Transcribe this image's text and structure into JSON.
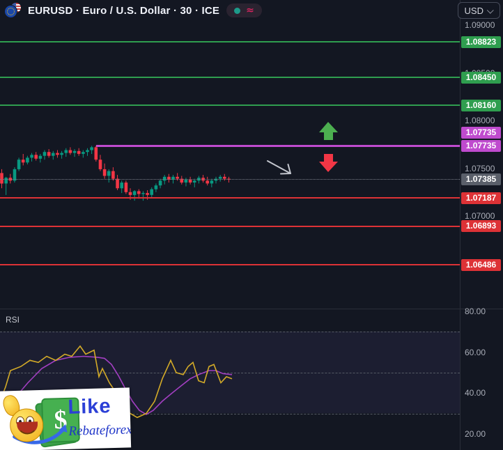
{
  "header": {
    "symbol_title": "EURUSD · Euro / U.S. Dollar · 30 · ICE",
    "status": {
      "approx_symbol": "≈"
    },
    "currency_selector": {
      "label": "USD"
    }
  },
  "price_axis": {
    "ticks": [
      {
        "label": "1.09000",
        "value": 1.09
      },
      {
        "label": "1.08500",
        "value": 1.085
      },
      {
        "label": "1.08000",
        "value": 1.08
      },
      {
        "label": "1.07500",
        "value": 1.075
      },
      {
        "label": "1.07000",
        "value": 1.07
      }
    ],
    "badges": [
      {
        "label": "1.08823",
        "value": 1.08823,
        "color": "green"
      },
      {
        "label": "1.08450",
        "value": 1.0845,
        "color": "green"
      },
      {
        "label": "1.08160",
        "value": 1.0816,
        "color": "green"
      },
      {
        "label": "1.07735",
        "value": 1.07735,
        "color": "magenta",
        "stack": -1
      },
      {
        "label": "1.07735",
        "value": 1.07735,
        "color": "magenta"
      },
      {
        "label": "1.07385",
        "value": 1.07385,
        "color": "gray"
      },
      {
        "label": "1.07187",
        "value": 1.07187,
        "color": "red"
      },
      {
        "label": "1.06893",
        "value": 1.06893,
        "color": "red"
      },
      {
        "label": "1.06486",
        "value": 1.06486,
        "color": "red"
      }
    ]
  },
  "rsi_pane": {
    "label": "RSI",
    "ticks": [
      {
        "label": "80.00",
        "value": 80
      },
      {
        "label": "60.00",
        "value": 60
      },
      {
        "label": "40.00",
        "value": 40
      },
      {
        "label": "20.00",
        "value": 20
      }
    ]
  },
  "watermark": {
    "title": "Like",
    "subtitle": "Rebateforex",
    "dollar_sign": "$"
  },
  "colors": {
    "candle_up": "#089981",
    "candle_down": "#f23645",
    "level_green": "#2f9e4f",
    "level_red": "#dd3236",
    "level_magenta": "#bf4bce",
    "rsi_line": "#d4ab28",
    "rsi_ma": "#a33fc2",
    "arrow_up": "#4caf50",
    "arrow_down": "#f23645",
    "drawn_arrow": "#c3c6ce"
  },
  "chart_data": {
    "type": "candlestick",
    "symbol": "EURUSD",
    "interval": "30",
    "exchange": "ICE",
    "main_pane": {
      "ylim": [
        1.0603,
        1.0906
      ],
      "current_price": 1.07385,
      "levels": [
        {
          "price": 1.08823,
          "color": "green"
        },
        {
          "price": 1.0845,
          "color": "green"
        },
        {
          "price": 1.0816,
          "color": "green"
        },
        {
          "price": 1.07735,
          "color": "magenta",
          "x_start": 138
        },
        {
          "price": 1.07187,
          "color": "red"
        },
        {
          "price": 1.06893,
          "color": "red"
        },
        {
          "price": 1.06486,
          "color": "red"
        }
      ],
      "candles_ohlc": [
        [
          1.0745,
          1.0749,
          1.0729,
          1.0734
        ],
        [
          1.0734,
          1.0741,
          1.0722,
          1.074
        ],
        [
          1.074,
          1.0744,
          1.0734,
          1.0737
        ],
        [
          1.0737,
          1.0751,
          1.0735,
          1.0749
        ],
        [
          1.0749,
          1.0761,
          1.0747,
          1.0759
        ],
        [
          1.0759,
          1.0765,
          1.0753,
          1.0756
        ],
        [
          1.0756,
          1.0763,
          1.0754,
          1.0761
        ],
        [
          1.0761,
          1.0766,
          1.0757,
          1.0764
        ],
        [
          1.0764,
          1.0767,
          1.0758,
          1.076
        ],
        [
          1.076,
          1.0765,
          1.0756,
          1.0763
        ],
        [
          1.0763,
          1.0769,
          1.0759,
          1.0767
        ],
        [
          1.0767,
          1.077,
          1.0761,
          1.0763
        ],
        [
          1.0763,
          1.0768,
          1.0759,
          1.0766
        ],
        [
          1.0766,
          1.0769,
          1.0761,
          1.0764
        ],
        [
          1.0764,
          1.0768,
          1.076,
          1.0766
        ],
        [
          1.0766,
          1.0771,
          1.0762,
          1.0769
        ],
        [
          1.0769,
          1.0772,
          1.0764,
          1.0766
        ],
        [
          1.0766,
          1.077,
          1.0762,
          1.0768
        ],
        [
          1.0768,
          1.0771,
          1.0763,
          1.0765
        ],
        [
          1.0765,
          1.0769,
          1.0761,
          1.0767
        ],
        [
          1.0767,
          1.0771,
          1.0763,
          1.0769
        ],
        [
          1.0769,
          1.07735,
          1.0765,
          1.0772
        ],
        [
          1.0772,
          1.07735,
          1.0757,
          1.0759
        ],
        [
          1.0759,
          1.0764,
          1.0747,
          1.0749
        ],
        [
          1.0749,
          1.0755,
          1.0739,
          1.0742
        ],
        [
          1.0742,
          1.0749,
          1.0735,
          1.0747
        ],
        [
          1.0747,
          1.0751,
          1.0737,
          1.0739
        ],
        [
          1.0739,
          1.0743,
          1.0727,
          1.0729
        ],
        [
          1.0729,
          1.0737,
          1.0724,
          1.0735
        ],
        [
          1.0735,
          1.0737,
          1.0723,
          1.0725
        ],
        [
          1.0725,
          1.0729,
          1.0717,
          1.0722
        ],
        [
          1.0722,
          1.0727,
          1.0716,
          1.0726
        ],
        [
          1.0726,
          1.0728,
          1.0718,
          1.0723
        ],
        [
          1.0723,
          1.0726,
          1.0716,
          1.0724
        ],
        [
          1.0724,
          1.0727,
          1.0717,
          1.0722
        ],
        [
          1.0722,
          1.073,
          1.0719,
          1.0728
        ],
        [
          1.0728,
          1.0734,
          1.0725,
          1.0732
        ],
        [
          1.0732,
          1.0739,
          1.0729,
          1.0737
        ],
        [
          1.0737,
          1.0743,
          1.0733,
          1.0741
        ],
        [
          1.0741,
          1.0744,
          1.0735,
          1.0738
        ],
        [
          1.0738,
          1.0743,
          1.0734,
          1.0741
        ],
        [
          1.0741,
          1.0745,
          1.0737,
          1.0739
        ],
        [
          1.0739,
          1.0742,
          1.0733,
          1.0735
        ],
        [
          1.0735,
          1.074,
          1.0731,
          1.0738
        ],
        [
          1.0738,
          1.0741,
          1.0733,
          1.0735
        ],
        [
          1.0735,
          1.0739,
          1.073,
          1.0737
        ],
        [
          1.0737,
          1.0742,
          1.0734,
          1.074
        ],
        [
          1.074,
          1.0743,
          1.0735,
          1.0737
        ],
        [
          1.0737,
          1.0741,
          1.0732,
          1.0734
        ],
        [
          1.0734,
          1.0739,
          1.073,
          1.0737
        ],
        [
          1.0737,
          1.0741,
          1.0734,
          1.0739
        ],
        [
          1.0739,
          1.0743,
          1.0736,
          1.0741
        ],
        [
          1.0741,
          1.0744,
          1.0737,
          1.0739
        ],
        [
          1.0739,
          1.0741,
          1.0735,
          1.07385
        ]
      ]
    },
    "rsi_pane": {
      "ylim": [
        13,
        81
      ],
      "guides": [
        70,
        50,
        30
      ],
      "rsi_line": [
        [
          0,
          36
        ],
        [
          8,
          43
        ],
        [
          15,
          51
        ],
        [
          30,
          53
        ],
        [
          43,
          56
        ],
        [
          55,
          55
        ],
        [
          67,
          58
        ],
        [
          80,
          56
        ],
        [
          93,
          59
        ],
        [
          103,
          58
        ],
        [
          115,
          63
        ],
        [
          123,
          59
        ],
        [
          135,
          61
        ],
        [
          142,
          48
        ],
        [
          147,
          52
        ],
        [
          157,
          45
        ],
        [
          165,
          41
        ],
        [
          173,
          32
        ],
        [
          187,
          30
        ],
        [
          197,
          28
        ],
        [
          210,
          30
        ],
        [
          222,
          36
        ],
        [
          233,
          47
        ],
        [
          245,
          56
        ],
        [
          253,
          50
        ],
        [
          263,
          49
        ],
        [
          270,
          53
        ],
        [
          277,
          55
        ],
        [
          285,
          46
        ],
        [
          293,
          45
        ],
        [
          300,
          53
        ],
        [
          307,
          54
        ],
        [
          317,
          45
        ],
        [
          325,
          48
        ],
        [
          333,
          47
        ]
      ],
      "ma_line": [
        [
          0,
          31
        ],
        [
          20,
          37
        ],
        [
          40,
          45
        ],
        [
          60,
          52
        ],
        [
          80,
          56
        ],
        [
          100,
          57.5
        ],
        [
          120,
          58
        ],
        [
          140,
          57.5
        ],
        [
          150,
          57
        ],
        [
          160,
          54
        ],
        [
          170,
          48.5
        ],
        [
          180,
          42
        ],
        [
          190,
          36
        ],
        [
          200,
          31.5
        ],
        [
          210,
          29.5
        ],
        [
          220,
          31.5
        ],
        [
          233,
          36
        ],
        [
          247,
          40
        ],
        [
          260,
          43.5
        ],
        [
          273,
          47
        ],
        [
          285,
          49
        ],
        [
          300,
          51
        ],
        [
          310,
          51
        ],
        [
          320,
          49.5
        ],
        [
          333,
          49
        ]
      ]
    }
  }
}
